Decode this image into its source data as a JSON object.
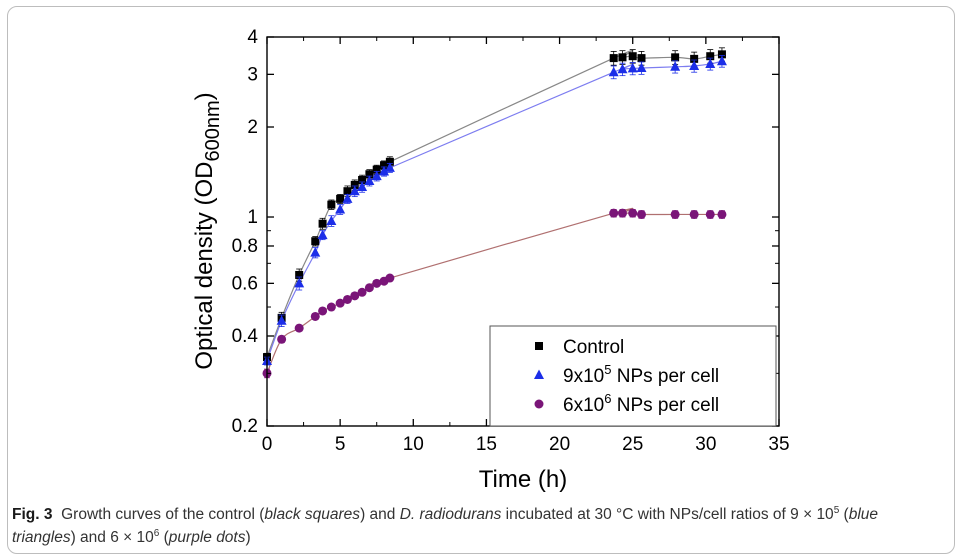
{
  "chart_data": {
    "type": "scatter",
    "xlabel": "Time (h)",
    "ylabel": "Optical density (OD600nm)",
    "ylabel_parts": {
      "main": "Optical density (OD",
      "sub": "600nm",
      "close": ")"
    },
    "xlim": [
      0,
      35
    ],
    "ylim": [
      0.2,
      4
    ],
    "yscale": "log",
    "xticks": [
      0,
      5,
      10,
      15,
      20,
      25,
      30,
      35
    ],
    "yticks": [
      0.2,
      0.4,
      0.6,
      0.8,
      1,
      2,
      3,
      4
    ],
    "ytick_labels": [
      "0.2",
      "0.4",
      "0.6",
      "0.8",
      "1",
      "2",
      "3",
      "4"
    ],
    "grid": false,
    "legend_position": "bottom-right",
    "series": [
      {
        "name": "Control",
        "marker": "square",
        "color": "#000000",
        "x": [
          0,
          1,
          2.2,
          3.3,
          3.8,
          4.4,
          5,
          5.5,
          6,
          6.5,
          7,
          7.5,
          8,
          8.4,
          23.7,
          24.3,
          25,
          25.6,
          27.9,
          29.2,
          30.3,
          31.1
        ],
        "y": [
          0.34,
          0.46,
          0.64,
          0.83,
          0.95,
          1.1,
          1.15,
          1.22,
          1.28,
          1.33,
          1.39,
          1.44,
          1.49,
          1.53,
          3.4,
          3.42,
          3.45,
          3.4,
          3.42,
          3.38,
          3.45,
          3.5
        ],
        "err": [
          0.01,
          0.02,
          0.03,
          0.03,
          0.04,
          0.04,
          0.04,
          0.05,
          0.05,
          0.05,
          0.05,
          0.05,
          0.05,
          0.06,
          0.18,
          0.18,
          0.18,
          0.18,
          0.18,
          0.18,
          0.18,
          0.18
        ],
        "fit_color": "#888888"
      },
      {
        "name": "9x10^5 NPs per cell",
        "marker": "triangle",
        "color": "#1c2ee8",
        "x": [
          0,
          1,
          2.2,
          3.3,
          3.8,
          4.4,
          5,
          5.5,
          6,
          6.5,
          7,
          7.5,
          8,
          8.4,
          23.7,
          24.3,
          25,
          25.6,
          27.9,
          29.2,
          30.3,
          31.1
        ],
        "y": [
          0.33,
          0.45,
          0.6,
          0.76,
          0.87,
          0.97,
          1.06,
          1.15,
          1.22,
          1.26,
          1.32,
          1.37,
          1.42,
          1.46,
          3.05,
          3.12,
          3.14,
          3.15,
          3.18,
          3.2,
          3.25,
          3.32
        ],
        "err": [
          0.01,
          0.02,
          0.03,
          0.03,
          0.03,
          0.04,
          0.04,
          0.04,
          0.05,
          0.05,
          0.05,
          0.05,
          0.05,
          0.05,
          0.15,
          0.15,
          0.15,
          0.15,
          0.15,
          0.15,
          0.15,
          0.15
        ],
        "fit_color": "#7d7df0"
      },
      {
        "name": "6x10^6 NPs per cell",
        "marker": "circle",
        "color": "#7a1578",
        "x": [
          0,
          1,
          2.2,
          3.3,
          3.8,
          4.4,
          5,
          5.5,
          6,
          6.5,
          7,
          7.5,
          8,
          8.4,
          23.7,
          24.3,
          25,
          25.6,
          27.9,
          29.2,
          30.3,
          31.1
        ],
        "y": [
          0.3,
          0.39,
          0.425,
          0.465,
          0.485,
          0.5,
          0.515,
          0.53,
          0.545,
          0.56,
          0.58,
          0.6,
          0.61,
          0.625,
          1.03,
          1.03,
          1.03,
          1.02,
          1.02,
          1.02,
          1.02,
          1.02
        ],
        "err": [
          0.01,
          0.01,
          0.01,
          0.01,
          0.01,
          0.01,
          0.01,
          0.01,
          0.01,
          0.01,
          0.01,
          0.01,
          0.01,
          0.01,
          0.03,
          0.03,
          0.03,
          0.03,
          0.03,
          0.03,
          0.03,
          0.03
        ],
        "fit_color": "#b07070"
      }
    ],
    "legend": [
      {
        "marker": "square",
        "color": "#000000",
        "label": "Control",
        "sup": "",
        "tail": ""
      },
      {
        "marker": "triangle",
        "color": "#1c2ee8",
        "label": "9x10",
        "sup": "5",
        "tail": " NPs per cell"
      },
      {
        "marker": "circle",
        "color": "#7a1578",
        "label": "6x10",
        "sup": "6",
        "tail": " NPs per cell"
      }
    ]
  },
  "caption": {
    "label": "Fig. 3",
    "t1": "Growth curves of the control (",
    "i1": "black squares",
    "t2": ") and ",
    "i2": "D. radiodurans",
    "t3": " incubated at 30 °C with NPs/cell ratios of 9 × 10",
    "sup1": "5",
    "t4": " (",
    "i3": "blue triangles",
    "t5": ") and 6 × 10",
    "sup2": "6",
    "t6": " (",
    "i4": "purple dots",
    "t7": ")"
  }
}
